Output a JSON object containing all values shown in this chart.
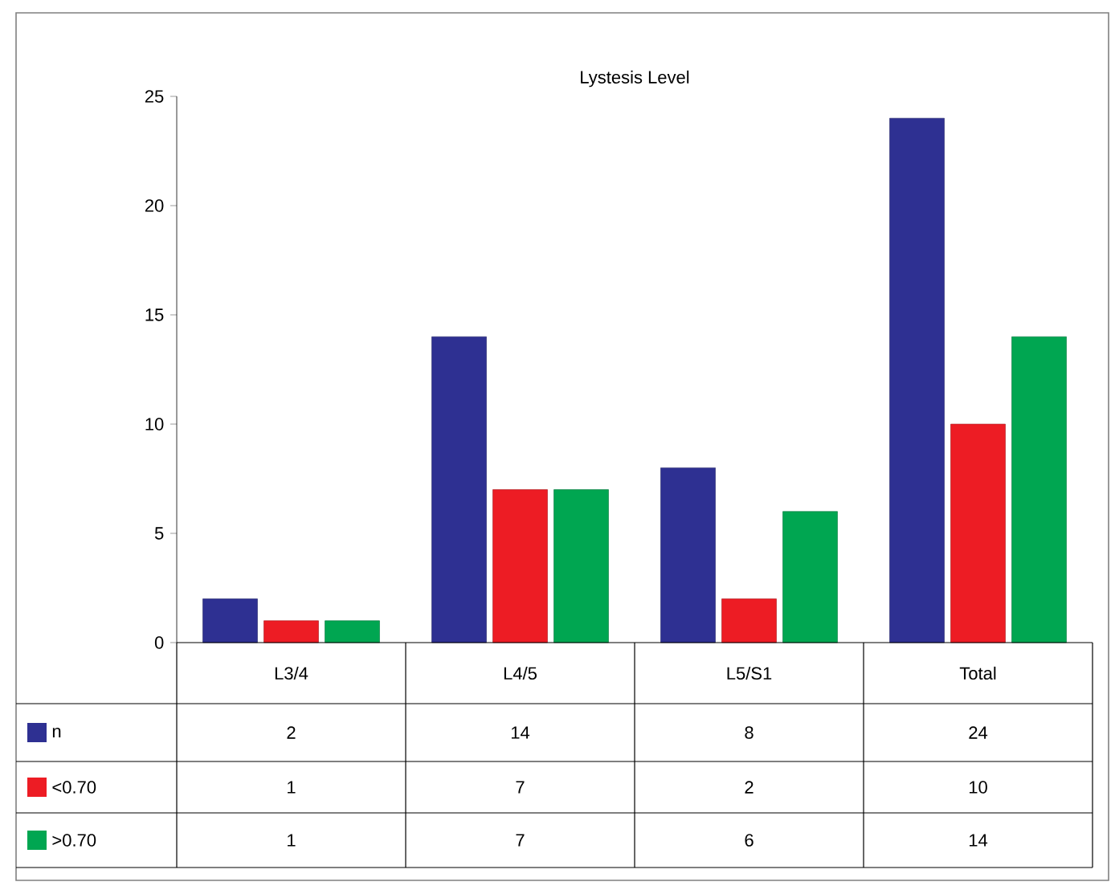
{
  "chart_data": {
    "type": "bar",
    "title": "Lystesis Level",
    "categories": [
      "L3/4",
      "L4/5",
      "L5/S1",
      "Total"
    ],
    "series": [
      {
        "name": "n",
        "color": "#2e3092",
        "values": [
          2,
          14,
          8,
          24
        ]
      },
      {
        "name": "<0.70",
        "color": "#ed1c24",
        "values": [
          1,
          7,
          2,
          10
        ]
      },
      {
        "name": ">0.70",
        "color": "#00a651",
        "values": [
          1,
          7,
          6,
          14
        ]
      }
    ],
    "ylim": [
      0,
      25
    ],
    "yticks": [
      0,
      5,
      10,
      15,
      20,
      25
    ],
    "data_labels": true,
    "legend": "bottom left"
  }
}
